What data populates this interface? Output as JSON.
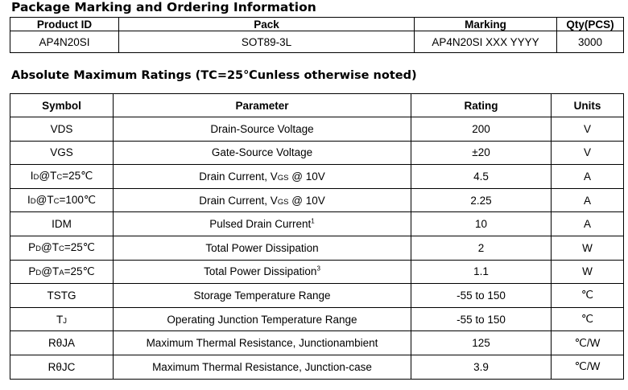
{
  "ordering": {
    "title": "Package Marking and Ordering Information",
    "headers": [
      "Product ID",
      "Pack",
      "Marking",
      "Qty(PCS)"
    ],
    "row": [
      "AP4N20SI",
      "SOT89-3L",
      "AP4N20SI XXX YYYY",
      "3000"
    ]
  },
  "ratings": {
    "title": "Absolute Maximum Ratings (TC=25℃unless otherwise noted)",
    "headers": [
      "Symbol",
      "Parameter",
      "Rating",
      "Units"
    ],
    "rows": [
      {
        "symbol": [
          "VDS"
        ],
        "parameter": [
          "Drain-Source Voltage"
        ],
        "rating": "200",
        "unit": "V"
      },
      {
        "symbol": [
          "VGS"
        ],
        "parameter": [
          "Gate-Source Voltage"
        ],
        "rating": "±20",
        "unit": "V"
      },
      {
        "symbol": [
          "I",
          "D",
          "@T",
          "C",
          "=25℃"
        ],
        "parameter": [
          "Drain Current, V",
          "GS",
          " @ 10V"
        ],
        "rating": "4.5",
        "unit": "A"
      },
      {
        "symbol": [
          "I",
          "D",
          "@T",
          "C",
          "=100℃"
        ],
        "parameter": [
          "Drain Current, V",
          "GS",
          " @ 10V"
        ],
        "rating": "2.25",
        "unit": "A"
      },
      {
        "symbol": [
          "IDM"
        ],
        "parameter": [
          "Pulsed Drain Current",
          "1"
        ],
        "rating": "10",
        "unit": "A"
      },
      {
        "symbol": [
          "P",
          "D",
          "@T",
          "C",
          "=25℃"
        ],
        "parameter": [
          "Total Power Dissipation"
        ],
        "rating": "2",
        "unit": "W"
      },
      {
        "symbol": [
          "P",
          "D",
          "@T",
          "A",
          "=25℃"
        ],
        "parameter": [
          "Total Power Dissipation",
          "3"
        ],
        "rating": "1.1",
        "unit": "W"
      },
      {
        "symbol": [
          "TSTG"
        ],
        "parameter": [
          "Storage Temperature Range"
        ],
        "rating": "-55 to 150",
        "unit": "℃"
      },
      {
        "symbol": [
          "T",
          "J"
        ],
        "parameter": [
          "Operating Junction Temperature Range"
        ],
        "rating": "-55 to 150",
        "unit": "℃"
      },
      {
        "symbol": [
          "RθJA"
        ],
        "parameter": [
          "Maximum Thermal Resistance, Junctionambient"
        ],
        "rating": "125",
        "unit": "℃/W"
      },
      {
        "symbol": [
          "RθJC"
        ],
        "parameter": [
          "Maximum Thermal Resistance, Junction-case"
        ],
        "rating": "3.9",
        "unit": "℃/W"
      }
    ]
  }
}
